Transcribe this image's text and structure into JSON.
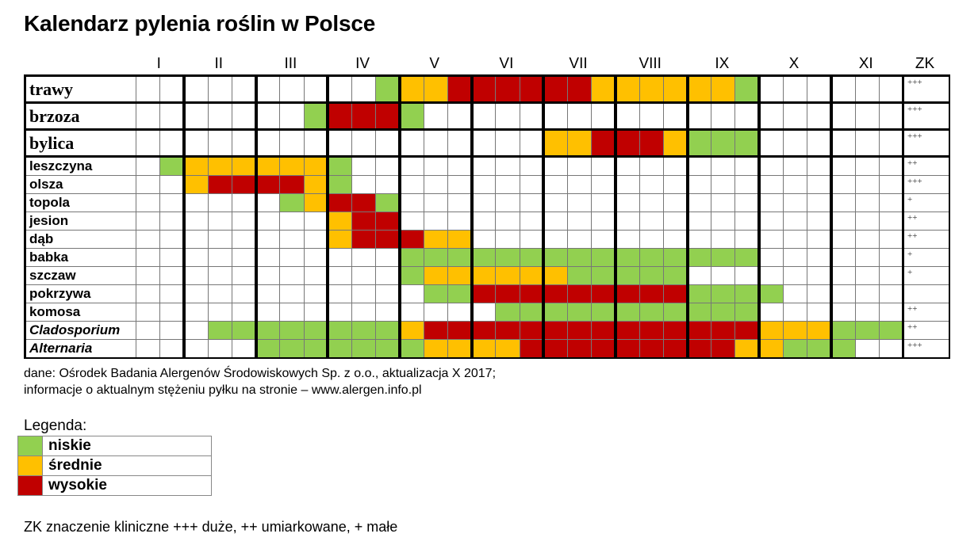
{
  "title": "Kalendarz pylenia roślin w Polsce",
  "colors": {
    "niskie": "#92d050",
    "srednie": "#ffc000",
    "wysokie": "#c00000",
    "brak": "#ffffff"
  },
  "header": {
    "months": [
      {
        "label": "I",
        "cols": 2
      },
      {
        "label": "II",
        "cols": 3
      },
      {
        "label": "III",
        "cols": 3
      },
      {
        "label": "IV",
        "cols": 3
      },
      {
        "label": "V",
        "cols": 3
      },
      {
        "label": "VI",
        "cols": 3
      },
      {
        "label": "VII",
        "cols": 3
      },
      {
        "label": "VIII",
        "cols": 3
      },
      {
        "label": "IX",
        "cols": 3
      },
      {
        "label": "X",
        "cols": 3
      },
      {
        "label": "XI",
        "cols": 3
      }
    ],
    "zk_label": "ZK"
  },
  "chart_data": {
    "type": "heatmap",
    "title": "Kalendarz pylenia roślin w Polsce",
    "x": [
      "I",
      "I",
      "II",
      "II",
      "II",
      "III",
      "III",
      "III",
      "IV",
      "IV",
      "IV",
      "V",
      "V",
      "V",
      "VI",
      "VI",
      "VI",
      "VII",
      "VII",
      "VII",
      "VIII",
      "VIII",
      "VIII",
      "IX",
      "IX",
      "IX",
      "X",
      "X",
      "X",
      "XI",
      "XI",
      "XI"
    ],
    "legend": {
      "G": "niskie",
      "O": "średnie",
      "R": "wysokie",
      "W": "brak"
    },
    "rows": [
      {
        "name": "trawy",
        "size": "big",
        "italic": false,
        "zk": "+++",
        "cells": "WW WWW WWW WWG OOR RRR RRO OOO OOG WWW WWW"
      },
      {
        "name": "brzoza",
        "size": "big",
        "italic": false,
        "zk": "+++",
        "cells": "WW WWW WWG RRR GWW WWW WWW WWW WWW WWW WWW"
      },
      {
        "name": "bylica",
        "size": "big",
        "italic": false,
        "zk": "+++",
        "cells": "WW WWW WWW WWW WWW WWW OOR RRO GGG WWW WWW"
      },
      {
        "name": "leszczyna",
        "size": "small",
        "italic": false,
        "zk": "++",
        "cells": "WG OOO OOO GWW WWW WWW WWW WWW WWW WWW WWW"
      },
      {
        "name": "olsza",
        "size": "small",
        "italic": false,
        "zk": "+++",
        "cells": "WW ORR RRO GWW WWW WWW WWW WWW WWW WWW WWW"
      },
      {
        "name": "topola",
        "size": "small",
        "italic": false,
        "zk": "+",
        "cells": "WW WWW WGO RRG WWW WWW WWW WWW WWW WWW WWW"
      },
      {
        "name": "jesion",
        "size": "small",
        "italic": false,
        "zk": "++",
        "cells": "WW WWW WWW ORR WWW WWW WWW WWW WWW WWW WWW"
      },
      {
        "name": "dąb",
        "size": "small",
        "italic": false,
        "zk": "++",
        "cells": "WW WWW WWW ORR ROO WWW WWW WWW WWW WWW WWW"
      },
      {
        "name": "babka",
        "size": "small",
        "italic": false,
        "zk": "+",
        "cells": "WW WWW WWW WWW GGG GGG GGG GGG GGG WWW WWW"
      },
      {
        "name": "szczaw",
        "size": "small",
        "italic": false,
        "zk": "+",
        "cells": "WW WWW WWW WWW GOO OOO OGG GGG WWW WWW WWW"
      },
      {
        "name": "pokrzywa",
        "size": "small",
        "italic": false,
        "zk": "",
        "cells": "WW WWW WWW WWW WGG RRR RRR RRR GGG GWW WWW"
      },
      {
        "name": "komosa",
        "size": "small",
        "italic": false,
        "zk": "++",
        "cells": "WW WWW WWW WWW WWW WGG GGG GGG GGG WWW WWW"
      },
      {
        "name": "Cladosporium",
        "size": "small",
        "italic": true,
        "zk": "++",
        "cells": "WW WGG GGG GGG ORR RRR RRR RRR RRR OOO GGG"
      },
      {
        "name": "Alternaria",
        "size": "small",
        "italic": true,
        "zk": "+++",
        "cells": "WW WWW GGG GGG GOO OOR RRR RRR RRO OGG GWW"
      }
    ]
  },
  "notes": {
    "line1": "dane: Ośrodek Badania Alergenów Środowiskowych Sp. z o.o., aktualizacja X 2017;",
    "line2": "informacje o aktualnym stężeniu pyłku na stronie – www.alergen.info.pl"
  },
  "legend": {
    "title": "Legenda:",
    "items": [
      {
        "code": "G",
        "label": "niskie"
      },
      {
        "code": "O",
        "label": "średnie"
      },
      {
        "code": "R",
        "label": "wysokie"
      }
    ]
  },
  "zk_note": "ZK znaczenie kliniczne +++ duże, ++ umiarkowane, + małe"
}
